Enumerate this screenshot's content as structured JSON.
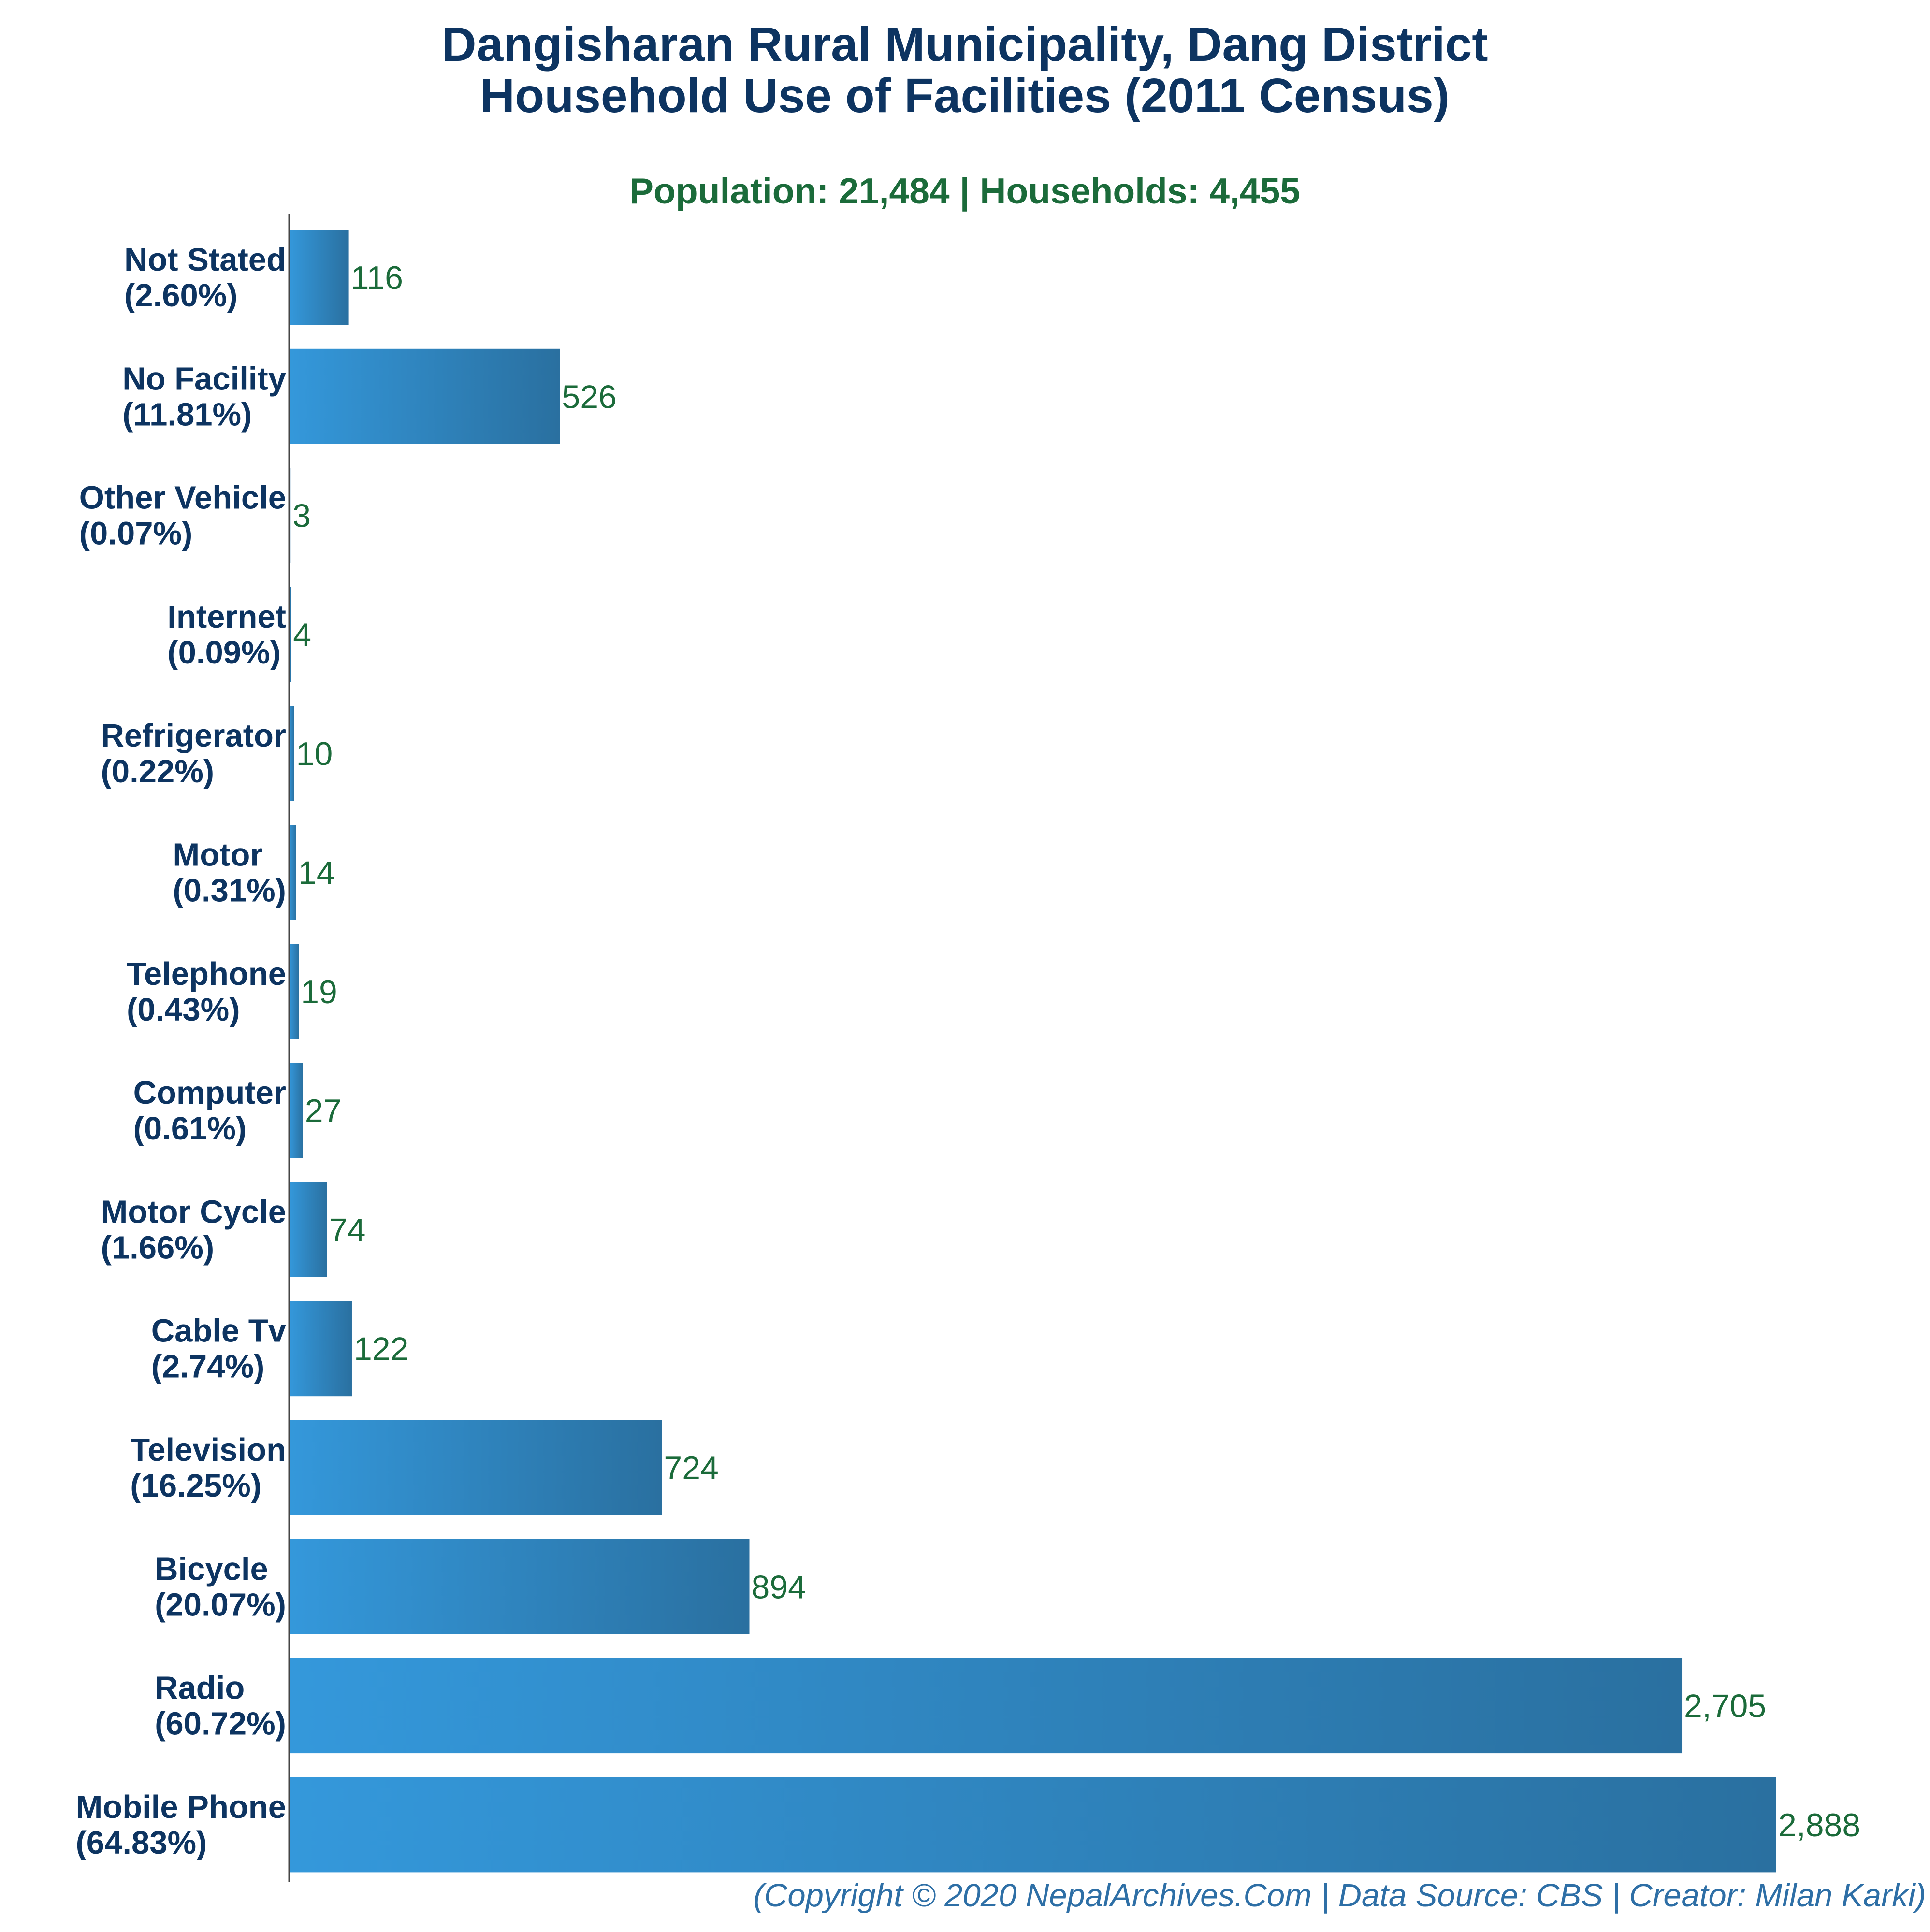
{
  "colors": {
    "title": "#0d3461",
    "subtitle": "#1b6b3a",
    "category_label": "#0d3461",
    "value_label": "#1b6b3a",
    "bar_gradient_start": "#3498db",
    "bar_gradient_end": "#2a70a0",
    "axis": "#444444",
    "footer": "#2e6fa6",
    "background": "#ffffff"
  },
  "chart_data": {
    "type": "bar",
    "orientation": "horizontal",
    "title": "Dangisharan Rural Municipality, Dang District",
    "title_line2": "Household Use of Facilities (2011 Census)",
    "subtitle": "Population: 21,484 | Households: 4,455",
    "footer": "(Copyright © 2020 NepalArchives.Com | Data Source: CBS | Creator: Milan Karki)",
    "xlim": [
      0,
      2888
    ],
    "grid": false,
    "legend": "none",
    "categories": [
      {
        "name": "Not Stated",
        "percent": "(2.60%)",
        "value": 116,
        "value_label": "116"
      },
      {
        "name": "No Facility",
        "percent": "(11.81%)",
        "value": 526,
        "value_label": "526"
      },
      {
        "name": "Other Vehicle",
        "percent": "(0.07%)",
        "value": 3,
        "value_label": "3"
      },
      {
        "name": "Internet",
        "percent": "(0.09%)",
        "value": 4,
        "value_label": "4"
      },
      {
        "name": "Refrigerator",
        "percent": "(0.22%)",
        "value": 10,
        "value_label": "10"
      },
      {
        "name": "Motor",
        "percent": "(0.31%)",
        "value": 14,
        "value_label": "14"
      },
      {
        "name": "Telephone",
        "percent": "(0.43%)",
        "value": 19,
        "value_label": "19"
      },
      {
        "name": "Computer",
        "percent": "(0.61%)",
        "value": 27,
        "value_label": "27"
      },
      {
        "name": "Motor Cycle",
        "percent": "(1.66%)",
        "value": 74,
        "value_label": "74"
      },
      {
        "name": "Cable Tv",
        "percent": "(2.74%)",
        "value": 122,
        "value_label": "122"
      },
      {
        "name": "Television",
        "percent": "(16.25%)",
        "value": 724,
        "value_label": "724"
      },
      {
        "name": "Bicycle",
        "percent": "(20.07%)",
        "value": 894,
        "value_label": "894"
      },
      {
        "name": "Radio",
        "percent": "(60.72%)",
        "value": 2705,
        "value_label": "2,705"
      },
      {
        "name": "Mobile Phone",
        "percent": "(64.83%)",
        "value": 2888,
        "value_label": "2,888"
      }
    ]
  }
}
